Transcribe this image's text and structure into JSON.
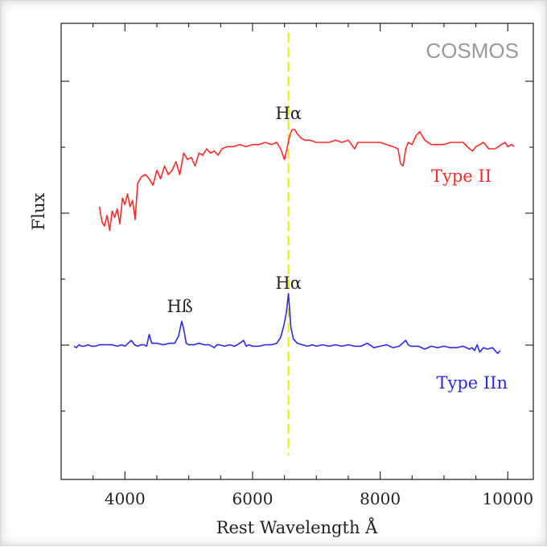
{
  "chart_data": {
    "type": "line",
    "watermark": "COSMOS",
    "xlabel": "Rest Wavelength Å",
    "ylabel": "Flux",
    "xlim": [
      3000,
      10400
    ],
    "x_ticks": [
      4000,
      6000,
      8000,
      10000
    ],
    "x_tick_labels": [
      "4000",
      "6000",
      "8000",
      "10000"
    ],
    "grid": false,
    "reference_line": {
      "x": 6563,
      "color": "#f2e600",
      "style": "dashed"
    },
    "series": [
      {
        "name": "Type II",
        "color": "#ff2a2a",
        "x": [
          3600,
          3640,
          3680,
          3720,
          3760,
          3800,
          3840,
          3880,
          3920,
          3960,
          4000,
          4040,
          4080,
          4120,
          4160,
          4200,
          4260,
          4320,
          4380,
          4440,
          4500,
          4560,
          4620,
          4680,
          4740,
          4800,
          4860,
          4920,
          4980,
          5040,
          5100,
          5160,
          5220,
          5280,
          5340,
          5400,
          5460,
          5520,
          5600,
          5700,
          5800,
          5900,
          6000,
          6100,
          6200,
          6300,
          6380,
          6440,
          6500,
          6540,
          6580,
          6620,
          6660,
          6700,
          6760,
          6820,
          6900,
          7000,
          7100,
          7200,
          7300,
          7400,
          7500,
          7600,
          7650,
          7700,
          7800,
          7900,
          8000,
          8100,
          8200,
          8280,
          8320,
          8360,
          8400,
          8440,
          8500,
          8560,
          8620,
          8700,
          8800,
          8900,
          9000,
          9100,
          9200,
          9300,
          9400,
          9450,
          9500,
          9560,
          9620,
          9700,
          9800,
          9900,
          9960,
          10000,
          10060,
          10100
        ],
        "y": [
          0.59,
          0.52,
          0.5,
          0.55,
          0.48,
          0.57,
          0.54,
          0.58,
          0.51,
          0.63,
          0.6,
          0.65,
          0.59,
          0.62,
          0.53,
          0.7,
          0.73,
          0.74,
          0.72,
          0.69,
          0.76,
          0.72,
          0.78,
          0.74,
          0.76,
          0.8,
          0.74,
          0.84,
          0.81,
          0.82,
          0.78,
          0.84,
          0.83,
          0.86,
          0.84,
          0.85,
          0.83,
          0.86,
          0.87,
          0.87,
          0.88,
          0.87,
          0.88,
          0.88,
          0.89,
          0.88,
          0.89,
          0.86,
          0.81,
          0.86,
          0.92,
          0.95,
          0.95,
          0.93,
          0.91,
          0.9,
          0.9,
          0.89,
          0.89,
          0.89,
          0.9,
          0.89,
          0.9,
          0.86,
          0.89,
          0.89,
          0.89,
          0.89,
          0.89,
          0.88,
          0.87,
          0.86,
          0.79,
          0.78,
          0.86,
          0.89,
          0.88,
          0.92,
          0.94,
          0.9,
          0.88,
          0.88,
          0.88,
          0.89,
          0.89,
          0.89,
          0.86,
          0.85,
          0.87,
          0.88,
          0.89,
          0.86,
          0.86,
          0.88,
          0.89,
          0.87,
          0.88,
          0.87
        ]
      },
      {
        "name": "Type IIn",
        "color": "#2a2af2",
        "x": [
          3200,
          3240,
          3280,
          3320,
          3360,
          3420,
          3480,
          3540,
          3600,
          3700,
          3800,
          3880,
          3950,
          4000,
          4050,
          4100,
          4150,
          4200,
          4250,
          4300,
          4340,
          4380,
          4420,
          4500,
          4600,
          4700,
          4780,
          4840,
          4890,
          4920,
          4960,
          5000,
          5080,
          5160,
          5240,
          5320,
          5400,
          5440,
          5480,
          5560,
          5640,
          5720,
          5800,
          5860,
          5900,
          5940,
          6000,
          6100,
          6200,
          6300,
          6380,
          6440,
          6490,
          6530,
          6563,
          6600,
          6640,
          6700,
          6780,
          6860,
          6940,
          7000,
          7100,
          7200,
          7300,
          7400,
          7500,
          7600,
          7700,
          7800,
          7900,
          8000,
          8100,
          8200,
          8300,
          8400,
          8440,
          8480,
          8540,
          8600,
          8700,
          8800,
          8900,
          9000,
          9100,
          9200,
          9300,
          9400,
          9440,
          9480,
          9520,
          9560,
          9620,
          9680,
          9760,
          9840,
          9880
        ],
        "y": [
          0.02,
          0.01,
          0.03,
          0.02,
          0.02,
          0.03,
          0.02,
          0.02,
          0.03,
          0.03,
          0.03,
          0.02,
          0.03,
          0.02,
          0.04,
          0.06,
          0.03,
          0.02,
          0.03,
          0.03,
          0.02,
          0.1,
          0.04,
          0.04,
          0.03,
          0.04,
          0.04,
          0.09,
          0.19,
          0.14,
          0.04,
          0.03,
          0.03,
          0.04,
          0.03,
          0.03,
          0.01,
          0.03,
          0.03,
          0.02,
          0.03,
          0.02,
          0.04,
          0.06,
          0.02,
          0.03,
          0.02,
          0.02,
          0.03,
          0.03,
          0.04,
          0.08,
          0.16,
          0.25,
          0.38,
          0.15,
          0.07,
          0.04,
          0.03,
          0.02,
          0.03,
          0.02,
          0.03,
          0.02,
          0.03,
          0.02,
          0.03,
          0.02,
          0.02,
          0.04,
          0.01,
          0.02,
          0.03,
          0.01,
          0.02,
          0.06,
          0.03,
          0.02,
          0.02,
          0.02,
          0.0,
          0.02,
          0.01,
          0.02,
          0.01,
          0.01,
          0.02,
          0.0,
          0.01,
          -0.01,
          0.03,
          -0.02,
          0.01,
          0.0,
          0.01,
          -0.03,
          -0.01
        ]
      }
    ],
    "series_labels": [
      {
        "text": "Type II",
        "color": "#ff2a2a"
      },
      {
        "text": "Type IIn",
        "color": "#2a2af2"
      }
    ],
    "annotations": [
      {
        "text": "Hα",
        "x": 6563,
        "attached_to": "Type II"
      },
      {
        "text": "Hα",
        "x": 6563,
        "attached_to": "Type IIn"
      },
      {
        "text": "Hß",
        "x": 4861,
        "attached_to": "Type IIn"
      }
    ]
  }
}
